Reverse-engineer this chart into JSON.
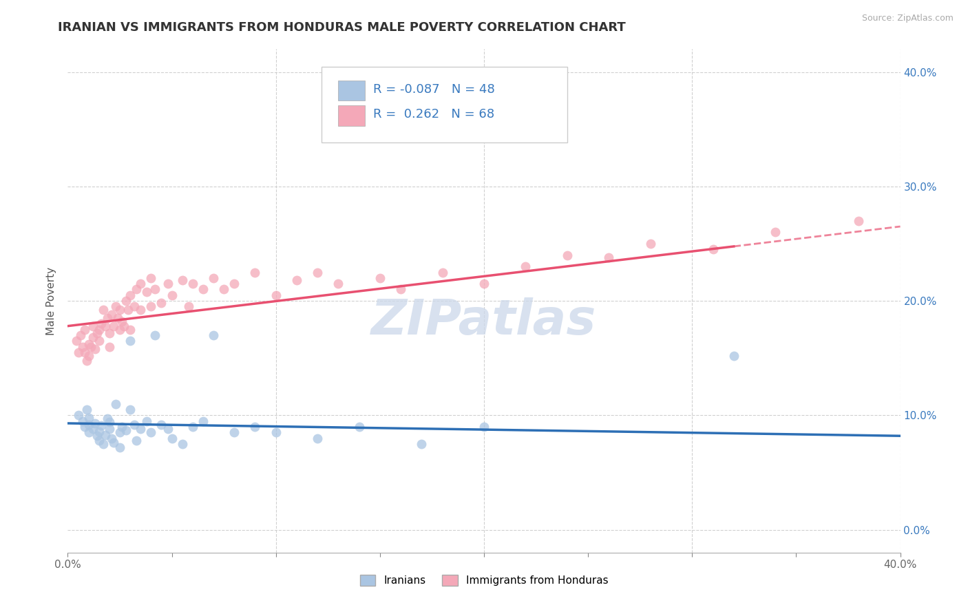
{
  "title": "IRANIAN VS IMMIGRANTS FROM HONDURAS MALE POVERTY CORRELATION CHART",
  "source": "Source: ZipAtlas.com",
  "ylabel": "Male Poverty",
  "watermark": "ZIPatlas",
  "xlim": [
    0.0,
    0.4
  ],
  "ylim": [
    -0.02,
    0.42
  ],
  "iranians_color": "#aac5e2",
  "honduras_color": "#f4a8b8",
  "line_iranian_color": "#2d6fb5",
  "line_honduras_color": "#e85070",
  "background_color": "#ffffff",
  "grid_color": "#d0d0d0",
  "title_fontsize": 13,
  "axis_label_fontsize": 11,
  "tick_fontsize": 11,
  "legend_fontsize": 13,
  "watermark_fontsize": 52,
  "marker_size": 10,
  "iran_line_start_y": 0.093,
  "iran_line_end_y": 0.082,
  "hond_line_start_y": 0.178,
  "hond_line_end_y": 0.265
}
